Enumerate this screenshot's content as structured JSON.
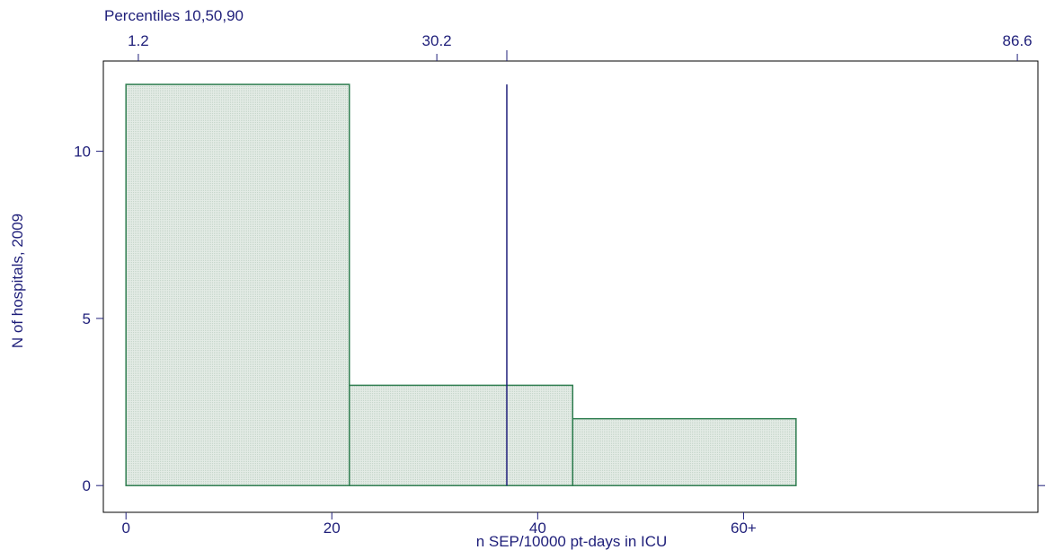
{
  "chart_data": {
    "type": "bar",
    "xlabel": "n SEP/10000 pt-days in ICU",
    "ylabel": "N of hospitals, 2009",
    "xlim": [
      -2.2,
      88.6
    ],
    "ylim": [
      -0.8,
      12.7
    ],
    "bins": [
      {
        "start": 0,
        "end": 21.7,
        "value": 12
      },
      {
        "start": 21.7,
        "end": 43.4,
        "value": 3
      },
      {
        "start": 43.4,
        "end": 65.1,
        "value": 2
      }
    ],
    "x_ticks": [
      {
        "value": 0,
        "label": "0"
      },
      {
        "value": 20,
        "label": "20"
      },
      {
        "value": 40,
        "label": "40"
      },
      {
        "value": 60,
        "label": "60+"
      }
    ],
    "y_ticks": [
      {
        "value": 0,
        "label": "0"
      },
      {
        "value": 5,
        "label": "5"
      },
      {
        "value": 10,
        "label": "10"
      }
    ],
    "percentiles": {
      "title": "Percentiles 10,50,90",
      "ticks": [
        {
          "value": 1.2,
          "label": "1.2"
        },
        {
          "value": 30.2,
          "label": "30.2"
        },
        {
          "value": 86.6,
          "label": "86.6"
        }
      ]
    },
    "reference_line": {
      "x": 37.0,
      "y_top": 12
    },
    "colors": {
      "bar_fill": "#e3ebe5",
      "bar_stroke": "#2e7d4f",
      "axis": "#1f1f7a",
      "frame": "#000000"
    },
    "grid": false,
    "legend": "none"
  }
}
